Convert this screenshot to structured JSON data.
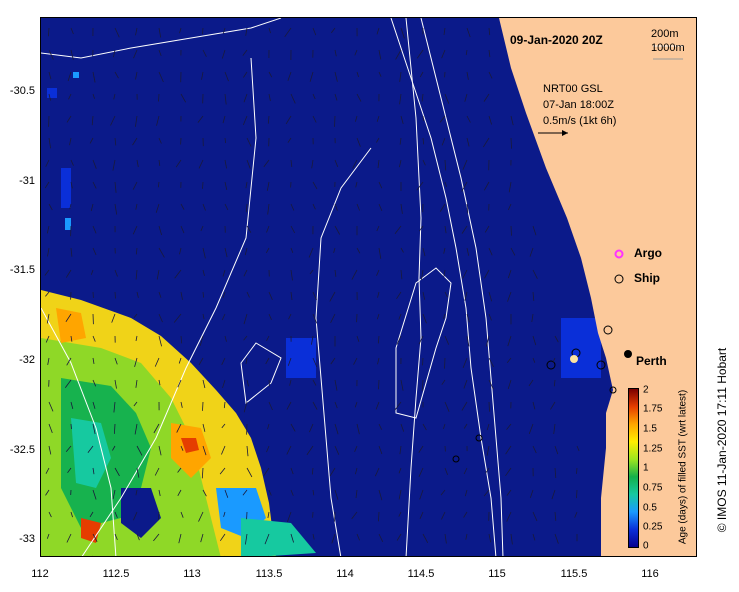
{
  "title": "09-Jan-2020 20Z",
  "depth_legend": {
    "line1": "200m",
    "line2": "1000m"
  },
  "current_info": {
    "line1": "NRT00 GSL",
    "line2": "07-Jan 18:00Z",
    "line3": "0.5m/s (1kt 6h)"
  },
  "markers": {
    "argo_label": "Argo",
    "ship_label": "Ship",
    "argo_color": "#ff33ff"
  },
  "city": {
    "label": "Perth"
  },
  "axes": {
    "y_ticks": [
      "-30.5",
      "-31",
      "-31.5",
      "-32",
      "-32.5",
      "-33"
    ],
    "x_ticks": [
      "112",
      "112.5",
      "113",
      "113.5",
      "114",
      "114.5",
      "115",
      "115.5",
      "116"
    ]
  },
  "colorbar": {
    "title": "Age (days) of filled SST (wrt latest)",
    "ticks": [
      "2",
      "1.75",
      "1.5",
      "1.25",
      "1",
      "0.75",
      "0.5",
      "0.25",
      "0"
    ],
    "colors": [
      "#07008f",
      "#0a2fd8",
      "#1a9aff",
      "#16c9a0",
      "#14b04a",
      "#9ee61f",
      "#ffee00",
      "#ffa500",
      "#e53d00",
      "#7a0000"
    ]
  },
  "copyright": "© IMOS 11-Jan-2020 17:11 Hobart",
  "colors": {
    "ocean": "#0b1a8a",
    "land": "#fcc99b",
    "contour": "#ffffff"
  }
}
